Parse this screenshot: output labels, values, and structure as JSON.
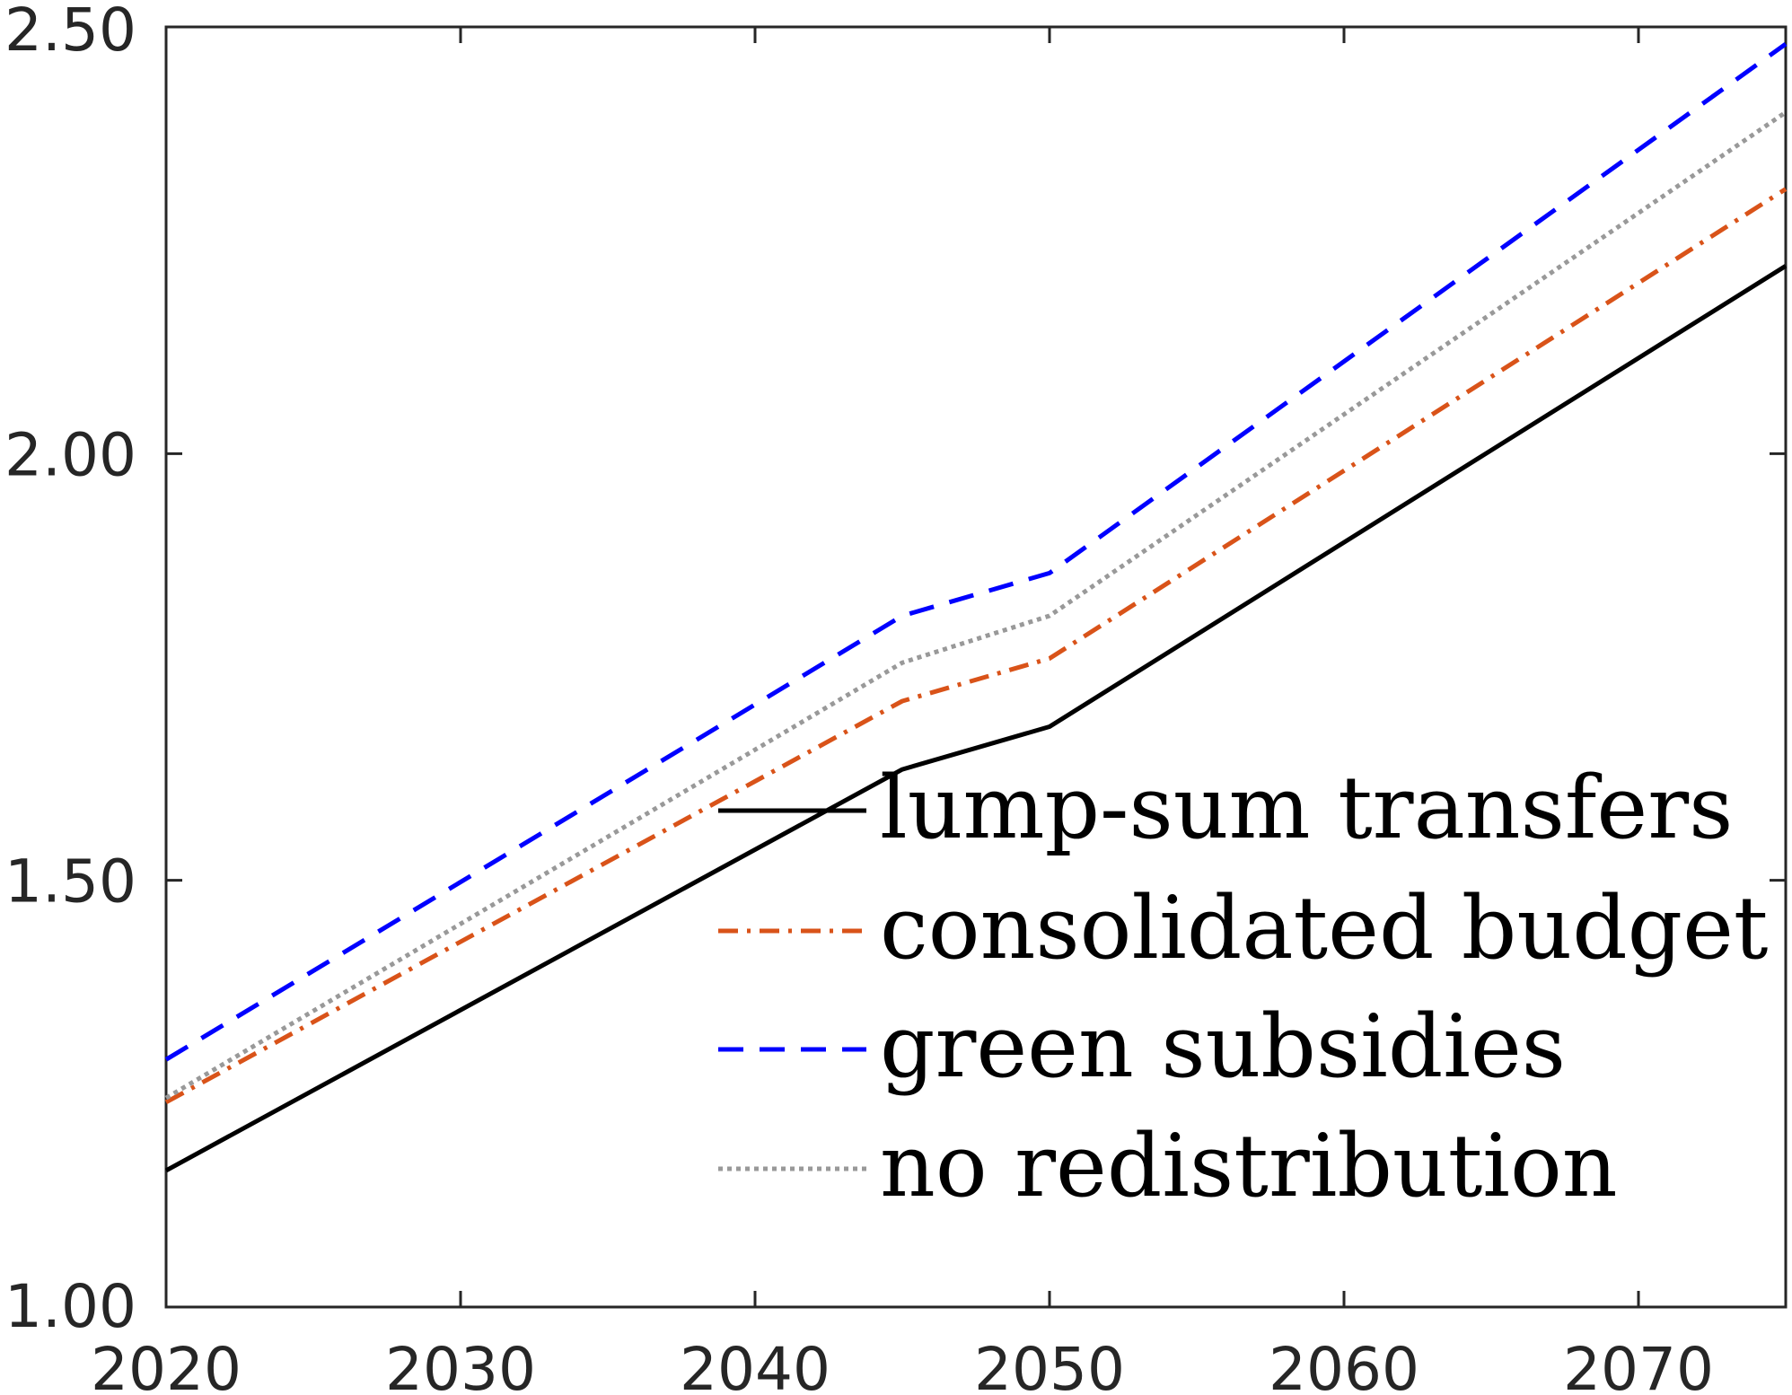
{
  "chart_data": {
    "type": "line",
    "title": "",
    "xlabel": "",
    "ylabel": "",
    "xlim": [
      2020,
      2075
    ],
    "ylim": [
      1.0,
      2.5
    ],
    "xticks": [
      2020,
      2030,
      2040,
      2050,
      2060,
      2070
    ],
    "xtick_labels": [
      "2020",
      "2030",
      "2040",
      "2050",
      "2060",
      "2070"
    ],
    "yticks": [
      1.0,
      1.5,
      2.0,
      2.5
    ],
    "ytick_labels": [
      "1.00",
      "1.50",
      "2.00",
      "2.50"
    ],
    "grid": false,
    "legend_position": "lower-right",
    "x": [
      2020,
      2045,
      2050,
      2075
    ],
    "series": [
      {
        "name": "lump-sum transfers",
        "color": "#000000",
        "style": "solid",
        "values": [
          1.16,
          1.63,
          1.68,
          2.22
        ]
      },
      {
        "name": "consolidated budget",
        "color": "#d95319",
        "style": "dashdot",
        "values": [
          1.24,
          1.71,
          1.76,
          2.31
        ]
      },
      {
        "name": "green subsidies",
        "color": "#0000ff",
        "style": "dashed",
        "values": [
          1.29,
          1.81,
          1.86,
          2.48
        ]
      },
      {
        "name": "no redistribution",
        "color": "#999999",
        "style": "dotted",
        "values": [
          1.245,
          1.755,
          1.81,
          2.4
        ]
      }
    ]
  }
}
